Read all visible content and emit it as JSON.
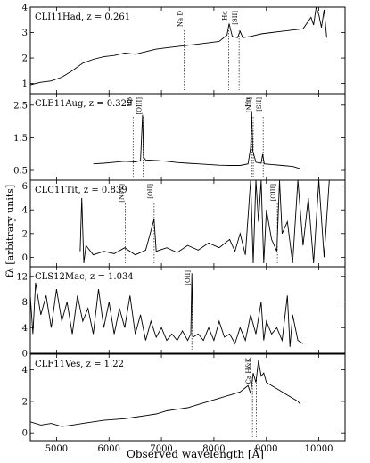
{
  "figure": {
    "ylabel": "fλ [arbitrary units]",
    "xlabel": "Observed wavelength [Å]"
  },
  "chart_data": [
    {
      "type": "line",
      "object": "CLI11Had",
      "redshift": "z = 0.261",
      "xlim": [
        4500,
        10500
      ],
      "ylim": [
        0.6,
        4.0
      ],
      "yticks": [
        1,
        2,
        3,
        4
      ],
      "lines": [
        {
          "label": "Na D",
          "x": 7430
        },
        {
          "label": "Hα",
          "x": 8280
        },
        {
          "label": "[SII]",
          "x": 8480
        }
      ],
      "series": [
        {
          "x": [
            4500,
            4700,
            4900,
            5100,
            5300,
            5500,
            5700,
            5900,
            6100,
            6300,
            6500,
            6700,
            6900,
            7100,
            7300,
            7500,
            7700,
            7900,
            8100,
            8250,
            8290,
            8350,
            8450,
            8500,
            8550,
            8700,
            8900,
            9100,
            9300,
            9500,
            9700,
            9850,
            9900,
            9950,
            10000,
            10050,
            10100,
            10150
          ],
          "y": [
            0.95,
            1.05,
            1.1,
            1.25,
            1.5,
            1.8,
            1.95,
            2.05,
            2.1,
            2.2,
            2.15,
            2.25,
            2.35,
            2.4,
            2.45,
            2.5,
            2.55,
            2.6,
            2.65,
            2.9,
            3.35,
            2.85,
            2.8,
            3.05,
            2.8,
            2.85,
            2.95,
            3.0,
            3.05,
            3.1,
            3.15,
            3.6,
            3.3,
            4.0,
            3.7,
            3.2,
            3.9,
            2.8
          ]
        }
      ]
    },
    {
      "type": "line",
      "object": "CLE11Aug",
      "redshift": "z = 0.329",
      "xlim": [
        4500,
        10500
      ],
      "ylim": [
        0.2,
        2.85
      ],
      "yticks": [
        0.5,
        1.5,
        2.5
      ],
      "lines": [
        {
          "label": "Hβ",
          "x": 6460
        },
        {
          "label": "[OIII]",
          "x": 6650
        },
        {
          "label": "Hα",
          "x": 8720
        },
        {
          "label": "[NII]",
          "x": 8750
        },
        {
          "label": "[SII]",
          "x": 8940
        }
      ],
      "series": [
        {
          "x": [
            5700,
            5900,
            6100,
            6300,
            6500,
            6600,
            6640,
            6660,
            6700,
            6900,
            7100,
            7300,
            7500,
            7700,
            7900,
            8100,
            8300,
            8500,
            8650,
            8700,
            8720,
            8740,
            8800,
            8900,
            8930,
            8960,
            9100,
            9300,
            9500,
            9650
          ],
          "y": [
            0.7,
            0.72,
            0.75,
            0.78,
            0.76,
            0.8,
            2.2,
            0.9,
            0.82,
            0.8,
            0.78,
            0.74,
            0.72,
            0.7,
            0.68,
            0.66,
            0.65,
            0.65,
            0.7,
            1.2,
            2.3,
            1.1,
            0.75,
            0.72,
            1.0,
            0.7,
            0.68,
            0.65,
            0.62,
            0.55
          ]
        }
      ]
    },
    {
      "type": "line",
      "object": "CLC11Tit",
      "redshift": "z = 0.839",
      "xlim": [
        4500,
        10500
      ],
      "ylim": [
        -0.8,
        6.5
      ],
      "yticks": [
        0,
        2,
        4,
        6
      ],
      "lines": [
        {
          "label": "[NeV]",
          "x": 6310
        },
        {
          "label": "[OII]",
          "x": 6860
        },
        {
          "label": "[OIII]",
          "x": 9210
        }
      ],
      "series": [
        {
          "x": [
            5450,
            5480,
            5520,
            5560,
            5700,
            5900,
            6100,
            6300,
            6500,
            6700,
            6860,
            6900,
            7100,
            7300,
            7500,
            7700,
            7900,
            8100,
            8300,
            8400,
            8500,
            8600,
            8700,
            8750,
            8800,
            8850,
            8900,
            8950,
            9000,
            9100,
            9200,
            9250,
            9300,
            9400,
            9500,
            9600,
            9700,
            9800,
            9900,
            10000,
            10100,
            10200
          ],
          "y": [
            0.5,
            5.0,
            -0.5,
            1.0,
            0.2,
            0.5,
            0.3,
            0.8,
            0.2,
            0.6,
            3.2,
            0.5,
            0.8,
            0.4,
            1.0,
            0.6,
            1.2,
            0.8,
            1.5,
            0.5,
            2.0,
            0.2,
            6.5,
            -0.5,
            6.5,
            3.0,
            6.5,
            -0.5,
            4.0,
            1.5,
            0.5,
            6.5,
            2.0,
            3.0,
            -0.5,
            6.5,
            1.0,
            5.0,
            -0.5,
            6.5,
            0.0,
            6.5
          ]
        }
      ]
    },
    {
      "type": "line",
      "object": "CLS12Mac",
      "redshift": "z = 1.034",
      "xlim": [
        4500,
        10500
      ],
      "ylim": [
        0,
        13.5
      ],
      "yticks": [
        0,
        4,
        8,
        12
      ],
      "lines": [
        {
          "label": "[OII]",
          "x": 7580
        }
      ],
      "series": [
        {
          "x": [
            4500,
            4550,
            4600,
            4700,
            4800,
            4900,
            5000,
            5100,
            5200,
            5300,
            5400,
            5500,
            5600,
            5700,
            5800,
            5900,
            6000,
            6100,
            6200,
            6300,
            6400,
            6500,
            6600,
            6700,
            6800,
            6900,
            7000,
            7100,
            7200,
            7300,
            7400,
            7500,
            7560,
            7580,
            7600,
            7700,
            7800,
            7900,
            8000,
            8100,
            8200,
            8300,
            8400,
            8500,
            8600,
            8700,
            8800,
            8900,
            8950,
            9000,
            9100,
            9200,
            9300,
            9400,
            9450,
            9500,
            9600,
            9700
          ],
          "y": [
            9.0,
            3.0,
            11.0,
            6.0,
            9.0,
            4.0,
            10.0,
            5.0,
            8.0,
            3.0,
            9.0,
            5.0,
            7.0,
            3.0,
            10.0,
            4.0,
            8.0,
            3.0,
            7.0,
            4.0,
            9.0,
            3.0,
            6.0,
            2.0,
            5.0,
            2.5,
            4.0,
            2.0,
            3.0,
            2.0,
            3.5,
            2.0,
            3.0,
            12.5,
            2.5,
            3.0,
            2.0,
            4.0,
            2.0,
            5.0,
            2.5,
            3.0,
            1.5,
            4.0,
            2.0,
            6.0,
            3.0,
            8.0,
            2.0,
            5.0,
            3.0,
            4.0,
            2.0,
            9.0,
            1.0,
            6.0,
            2.0,
            1.5
          ]
        }
      ]
    },
    {
      "type": "line",
      "object": "CLF11Ves",
      "redshift": "z = 1.22",
      "xlim": [
        4500,
        10500
      ],
      "ylim": [
        -0.5,
        5.0
      ],
      "yticks": [
        0,
        2,
        4
      ],
      "lines": [
        {
          "label": "Ca H&K",
          "x": 8735
        },
        {
          "label": "",
          "x": 8810
        }
      ],
      "series": [
        {
          "x": [
            4500,
            4700,
            4900,
            5100,
            5300,
            5500,
            5700,
            5900,
            6100,
            6300,
            6500,
            6700,
            6900,
            7100,
            7300,
            7500,
            7700,
            7900,
            8100,
            8300,
            8500,
            8650,
            8700,
            8750,
            8800,
            8850,
            8900,
            8950,
            9000,
            9100,
            9200,
            9300,
            9400,
            9500,
            9600,
            9650
          ],
          "y": [
            0.7,
            0.5,
            0.6,
            0.4,
            0.5,
            0.6,
            0.7,
            0.8,
            0.85,
            0.9,
            1.0,
            1.1,
            1.2,
            1.4,
            1.5,
            1.6,
            1.8,
            2.0,
            2.2,
            2.4,
            2.6,
            3.0,
            2.5,
            3.8,
            3.2,
            4.6,
            3.6,
            3.8,
            3.2,
            3.0,
            2.8,
            2.6,
            2.4,
            2.2,
            2.0,
            1.8
          ]
        }
      ]
    }
  ],
  "x_axis": {
    "ticks": [
      5000,
      6000,
      7000,
      8000,
      9000,
      10000
    ]
  }
}
